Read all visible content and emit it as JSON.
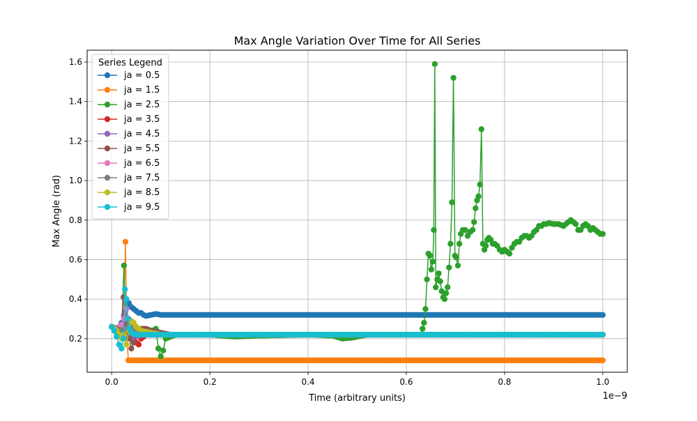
{
  "chart_data": {
    "type": "line",
    "title": "Max Angle Variation Over Time for All Series",
    "xlabel": "Time (arbitrary units)",
    "ylabel": "Max Angle (rad)",
    "x_offset_text": "1e−9",
    "xlim": [
      -0.05,
      1.05
    ],
    "ylim": [
      0.03,
      1.66
    ],
    "x_ticks": [
      0.0,
      0.2,
      0.4,
      0.6,
      0.8,
      1.0
    ],
    "x_tick_labels": [
      "0.0",
      "0.2",
      "0.4",
      "0.6",
      "0.8",
      "1.0"
    ],
    "y_ticks": [
      0.2,
      0.4,
      0.6,
      0.8,
      1.0,
      1.2,
      1.4,
      1.6
    ],
    "y_tick_labels": [
      "0.2",
      "0.4",
      "0.6",
      "0.8",
      "1.0",
      "1.2",
      "1.4",
      "1.6"
    ],
    "grid": true,
    "legend_title": "Series Legend",
    "legend_position": "top-left",
    "series": [
      {
        "name": "ja = 0.5",
        "color": "#1f77b4",
        "points": [
          [
            0.0,
            0.26
          ],
          [
            0.005,
            0.25
          ],
          [
            0.01,
            0.24
          ],
          [
            0.015,
            0.26
          ],
          [
            0.02,
            0.28
          ],
          [
            0.025,
            0.31
          ],
          [
            0.03,
            0.37
          ],
          [
            0.035,
            0.38
          ],
          [
            0.04,
            0.36
          ],
          [
            0.045,
            0.35
          ],
          [
            0.05,
            0.34
          ],
          [
            0.055,
            0.33
          ],
          [
            0.06,
            0.33
          ],
          [
            0.065,
            0.32
          ],
          [
            0.07,
            0.315
          ],
          [
            0.08,
            0.32
          ],
          [
            0.09,
            0.325
          ],
          [
            0.1,
            0.32
          ],
          [
            0.11,
            0.32
          ],
          [
            0.12,
            0.32
          ],
          [
            0.3,
            0.32
          ],
          [
            0.6,
            0.32
          ],
          [
            1.0,
            0.32
          ]
        ]
      },
      {
        "name": "ja = 1.5",
        "color": "#ff7f0e",
        "points": [
          [
            0.0,
            0.26
          ],
          [
            0.01,
            0.24
          ],
          [
            0.02,
            0.22
          ],
          [
            0.025,
            0.32
          ],
          [
            0.028,
            0.69
          ],
          [
            0.031,
            0.2
          ],
          [
            0.034,
            0.09
          ],
          [
            0.04,
            0.09
          ],
          [
            0.1,
            0.09
          ],
          [
            0.5,
            0.09
          ],
          [
            1.0,
            0.09
          ]
        ]
      },
      {
        "name": "ja = 2.5",
        "color": "#2ca02c",
        "points": [
          [
            0.0,
            0.26
          ],
          [
            0.01,
            0.23
          ],
          [
            0.02,
            0.21
          ],
          [
            0.025,
            0.57
          ],
          [
            0.028,
            0.3
          ],
          [
            0.032,
            0.24
          ],
          [
            0.04,
            0.24
          ],
          [
            0.05,
            0.23
          ],
          [
            0.07,
            0.22
          ],
          [
            0.09,
            0.25
          ],
          [
            0.095,
            0.15
          ],
          [
            0.1,
            0.11
          ],
          [
            0.105,
            0.14
          ],
          [
            0.11,
            0.2
          ],
          [
            0.13,
            0.22
          ],
          [
            0.2,
            0.22
          ],
          [
            0.25,
            0.21
          ],
          [
            0.3,
            0.215
          ],
          [
            0.4,
            0.22
          ],
          [
            0.45,
            0.215
          ],
          [
            0.47,
            0.2
          ],
          [
            0.49,
            0.205
          ],
          [
            0.52,
            0.22
          ],
          [
            0.6,
            0.22
          ],
          [
            0.63,
            0.22
          ],
          [
            0.633,
            0.25
          ],
          [
            0.636,
            0.28
          ],
          [
            0.639,
            0.35
          ],
          [
            0.642,
            0.5
          ],
          [
            0.645,
            0.63
          ],
          [
            0.648,
            0.62
          ],
          [
            0.651,
            0.55
          ],
          [
            0.654,
            0.59
          ],
          [
            0.656,
            0.75
          ],
          [
            0.658,
            1.59
          ],
          [
            0.66,
            0.46
          ],
          [
            0.663,
            0.5
          ],
          [
            0.666,
            0.53
          ],
          [
            0.669,
            0.49
          ],
          [
            0.672,
            0.44
          ],
          [
            0.675,
            0.41
          ],
          [
            0.678,
            0.4
          ],
          [
            0.681,
            0.43
          ],
          [
            0.684,
            0.46
          ],
          [
            0.687,
            0.56
          ],
          [
            0.69,
            0.68
          ],
          [
            0.693,
            0.89
          ],
          [
            0.696,
            1.52
          ],
          [
            0.699,
            0.62
          ],
          [
            0.702,
            0.61
          ],
          [
            0.705,
            0.57
          ],
          [
            0.708,
            0.68
          ],
          [
            0.711,
            0.73
          ],
          [
            0.715,
            0.75
          ],
          [
            0.72,
            0.75
          ],
          [
            0.725,
            0.72
          ],
          [
            0.73,
            0.74
          ],
          [
            0.735,
            0.75
          ],
          [
            0.738,
            0.79
          ],
          [
            0.741,
            0.86
          ],
          [
            0.744,
            0.9
          ],
          [
            0.747,
            0.92
          ],
          [
            0.75,
            0.98
          ],
          [
            0.753,
            1.26
          ],
          [
            0.756,
            0.68
          ],
          [
            0.759,
            0.65
          ],
          [
            0.762,
            0.67
          ],
          [
            0.765,
            0.7
          ],
          [
            0.768,
            0.71
          ],
          [
            0.772,
            0.7
          ],
          [
            0.776,
            0.68
          ],
          [
            0.78,
            0.68
          ],
          [
            0.785,
            0.67
          ],
          [
            0.79,
            0.65
          ],
          [
            0.795,
            0.64
          ],
          [
            0.8,
            0.65
          ],
          [
            0.805,
            0.64
          ],
          [
            0.81,
            0.63
          ],
          [
            0.815,
            0.66
          ],
          [
            0.82,
            0.68
          ],
          [
            0.825,
            0.69
          ],
          [
            0.83,
            0.69
          ],
          [
            0.835,
            0.71
          ],
          [
            0.84,
            0.72
          ],
          [
            0.845,
            0.72
          ],
          [
            0.85,
            0.71
          ],
          [
            0.855,
            0.72
          ],
          [
            0.86,
            0.74
          ],
          [
            0.865,
            0.75
          ],
          [
            0.87,
            0.77
          ],
          [
            0.875,
            0.77
          ],
          [
            0.88,
            0.78
          ],
          [
            0.885,
            0.78
          ],
          [
            0.89,
            0.785
          ],
          [
            0.9,
            0.78
          ],
          [
            0.91,
            0.78
          ],
          [
            0.92,
            0.77
          ],
          [
            0.925,
            0.78
          ],
          [
            0.93,
            0.79
          ],
          [
            0.935,
            0.8
          ],
          [
            0.94,
            0.79
          ],
          [
            0.945,
            0.78
          ],
          [
            0.95,
            0.75
          ],
          [
            0.955,
            0.75
          ],
          [
            0.96,
            0.77
          ],
          [
            0.965,
            0.78
          ],
          [
            0.97,
            0.77
          ],
          [
            0.975,
            0.75
          ],
          [
            0.98,
            0.76
          ],
          [
            0.985,
            0.75
          ],
          [
            0.99,
            0.74
          ],
          [
            0.995,
            0.73
          ],
          [
            1.0,
            0.73
          ]
        ]
      },
      {
        "name": "ja = 3.5",
        "color": "#d62728",
        "points": [
          [
            0.0,
            0.26
          ],
          [
            0.01,
            0.24
          ],
          [
            0.02,
            0.23
          ],
          [
            0.025,
            0.28
          ],
          [
            0.03,
            0.22
          ],
          [
            0.04,
            0.2
          ],
          [
            0.05,
            0.18
          ],
          [
            0.055,
            0.17
          ],
          [
            0.06,
            0.2
          ],
          [
            0.07,
            0.22
          ],
          [
            0.1,
            0.22
          ],
          [
            0.5,
            0.22
          ],
          [
            1.0,
            0.22
          ]
        ]
      },
      {
        "name": "ja = 4.5",
        "color": "#9467bd",
        "points": [
          [
            0.0,
            0.26
          ],
          [
            0.01,
            0.24
          ],
          [
            0.02,
            0.25
          ],
          [
            0.025,
            0.32
          ],
          [
            0.03,
            0.26
          ],
          [
            0.035,
            0.21
          ],
          [
            0.04,
            0.2
          ],
          [
            0.05,
            0.21
          ],
          [
            0.06,
            0.22
          ],
          [
            0.1,
            0.22
          ],
          [
            0.5,
            0.22
          ],
          [
            1.0,
            0.22
          ]
        ]
      },
      {
        "name": "ja = 5.5",
        "color": "#8c564b",
        "points": [
          [
            0.0,
            0.26
          ],
          [
            0.01,
            0.25
          ],
          [
            0.02,
            0.26
          ],
          [
            0.024,
            0.41
          ],
          [
            0.028,
            0.34
          ],
          [
            0.032,
            0.27
          ],
          [
            0.036,
            0.2
          ],
          [
            0.04,
            0.15
          ],
          [
            0.045,
            0.18
          ],
          [
            0.05,
            0.22
          ],
          [
            0.06,
            0.25
          ],
          [
            0.07,
            0.25
          ],
          [
            0.08,
            0.24
          ],
          [
            0.1,
            0.23
          ],
          [
            0.12,
            0.22
          ],
          [
            0.5,
            0.22
          ],
          [
            1.0,
            0.22
          ]
        ]
      },
      {
        "name": "ja = 6.5",
        "color": "#e377c2",
        "points": [
          [
            0.0,
            0.26
          ],
          [
            0.01,
            0.25
          ],
          [
            0.02,
            0.27
          ],
          [
            0.025,
            0.3
          ],
          [
            0.03,
            0.35
          ],
          [
            0.035,
            0.3
          ],
          [
            0.04,
            0.25
          ],
          [
            0.05,
            0.23
          ],
          [
            0.07,
            0.22
          ],
          [
            0.5,
            0.22
          ],
          [
            1.0,
            0.22
          ]
        ]
      },
      {
        "name": "ja = 7.5",
        "color": "#7f7f7f",
        "points": [
          [
            0.0,
            0.26
          ],
          [
            0.01,
            0.25
          ],
          [
            0.02,
            0.24
          ],
          [
            0.025,
            0.22
          ],
          [
            0.03,
            0.25
          ],
          [
            0.035,
            0.27
          ],
          [
            0.04,
            0.26
          ],
          [
            0.05,
            0.24
          ],
          [
            0.06,
            0.23
          ],
          [
            0.1,
            0.22
          ],
          [
            0.5,
            0.22
          ],
          [
            1.0,
            0.22
          ]
        ]
      },
      {
        "name": "ja = 8.5",
        "color": "#bcbd22",
        "points": [
          [
            0.0,
            0.26
          ],
          [
            0.01,
            0.24
          ],
          [
            0.02,
            0.2
          ],
          [
            0.025,
            0.22
          ],
          [
            0.03,
            0.17
          ],
          [
            0.035,
            0.24
          ],
          [
            0.04,
            0.29
          ],
          [
            0.045,
            0.28
          ],
          [
            0.05,
            0.26
          ],
          [
            0.06,
            0.24
          ],
          [
            0.08,
            0.23
          ],
          [
            0.1,
            0.22
          ],
          [
            0.5,
            0.22
          ],
          [
            1.0,
            0.22
          ]
        ]
      },
      {
        "name": "ja = 9.5",
        "color": "#17becf",
        "points": [
          [
            0.0,
            0.26
          ],
          [
            0.005,
            0.24
          ],
          [
            0.01,
            0.21
          ],
          [
            0.015,
            0.17
          ],
          [
            0.02,
            0.15
          ],
          [
            0.024,
            0.2
          ],
          [
            0.027,
            0.45
          ],
          [
            0.03,
            0.4
          ],
          [
            0.033,
            0.3
          ],
          [
            0.036,
            0.25
          ],
          [
            0.04,
            0.23
          ],
          [
            0.05,
            0.22
          ],
          [
            0.1,
            0.22
          ],
          [
            0.5,
            0.22
          ],
          [
            1.0,
            0.22
          ]
        ]
      }
    ]
  }
}
